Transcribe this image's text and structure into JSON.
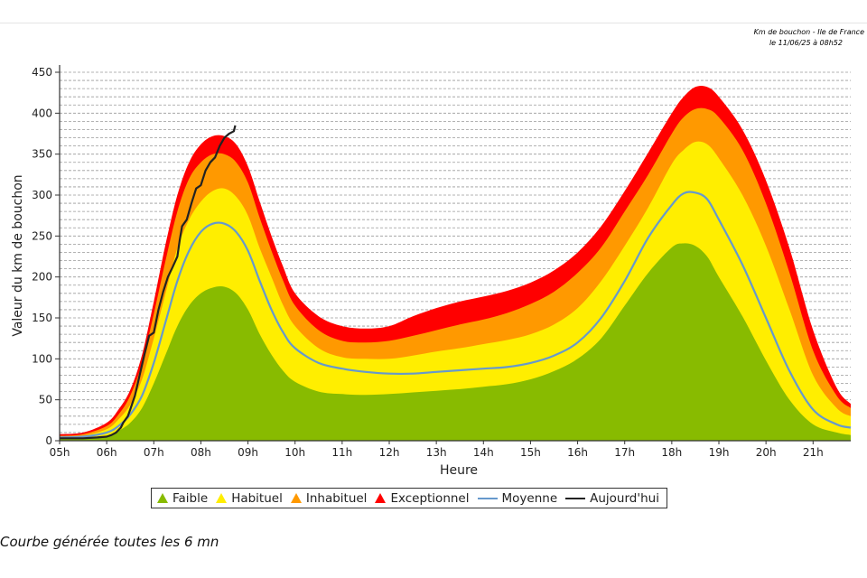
{
  "header": {
    "line1": "Km de bouchon - Ile de France",
    "line2": "le 11/06/25 à 08h52"
  },
  "footer": {
    "note": "Courbe générée toutes les 6 mn"
  },
  "chart_data": {
    "type": "area",
    "xlabel": "Heure",
    "ylabel": "Valeur du  km de bouchon",
    "x_ticks": [
      "05h",
      "06h",
      "07h",
      "08h",
      "09h",
      "10h",
      "11h",
      "12h",
      "13h",
      "14h",
      "15h",
      "16h",
      "17h",
      "18h",
      "19h",
      "20h",
      "21h"
    ],
    "x_tick_hours": [
      5,
      6,
      7,
      8,
      9,
      10,
      11,
      12,
      13,
      14,
      15,
      16,
      17,
      18,
      19,
      20,
      21
    ],
    "xlim": [
      5,
      21.8
    ],
    "ylim": [
      0,
      450
    ],
    "y_ticks": [
      0,
      50,
      100,
      150,
      200,
      250,
      300,
      350,
      400,
      450
    ],
    "grid": "horizontal dashed, every 10",
    "legend_position": "bottom",
    "x": [
      5,
      5.5,
      6,
      6.25,
      6.5,
      6.75,
      7,
      7.25,
      7.5,
      7.75,
      8,
      8.25,
      8.5,
      8.75,
      9,
      9.25,
      9.5,
      9.75,
      10,
      10.5,
      11,
      11.5,
      12,
      12.5,
      13,
      13.5,
      14,
      14.5,
      15,
      15.5,
      16,
      16.5,
      17,
      17.5,
      18,
      18.25,
      18.5,
      18.75,
      19,
      19.5,
      20,
      20.5,
      21,
      21.5,
      21.8
    ],
    "series": [
      {
        "name": "Exceptionnel",
        "color": "#ff0000",
        "kind": "band",
        "values": [
          8,
          10,
          22,
          38,
          62,
          105,
          170,
          240,
          300,
          340,
          362,
          372,
          372,
          362,
          335,
          292,
          250,
          212,
          180,
          152,
          140,
          137,
          140,
          152,
          162,
          170,
          176,
          183,
          193,
          208,
          230,
          262,
          305,
          352,
          400,
          420,
          432,
          432,
          420,
          380,
          318,
          235,
          135,
          65,
          45
        ]
      },
      {
        "name": "Inhabituel",
        "color": "#ff9900",
        "kind": "band",
        "values": [
          6,
          8,
          18,
          32,
          55,
          95,
          155,
          220,
          280,
          320,
          340,
          350,
          350,
          340,
          315,
          272,
          232,
          195,
          165,
          135,
          122,
          120,
          122,
          128,
          135,
          142,
          148,
          156,
          167,
          182,
          205,
          236,
          280,
          325,
          375,
          395,
          405,
          405,
          395,
          355,
          290,
          205,
          110,
          55,
          40
        ]
      },
      {
        "name": "Habituel",
        "color": "#ffee00",
        "kind": "band",
        "values": [
          4,
          6,
          14,
          26,
          44,
          75,
          125,
          180,
          235,
          270,
          292,
          305,
          308,
          298,
          275,
          235,
          200,
          165,
          140,
          113,
          102,
          100,
          100,
          104,
          109,
          113,
          118,
          123,
          130,
          142,
          162,
          195,
          238,
          285,
          338,
          355,
          365,
          362,
          345,
          300,
          238,
          160,
          80,
          40,
          30
        ]
      },
      {
        "name": "Faible",
        "color": "#88bb00",
        "kind": "band",
        "values": [
          2,
          3,
          6,
          12,
          22,
          40,
          70,
          105,
          140,
          165,
          180,
          187,
          188,
          180,
          160,
          130,
          105,
          85,
          72,
          60,
          57,
          56,
          57,
          59,
          61,
          63,
          66,
          69,
          75,
          85,
          100,
          125,
          165,
          205,
          236,
          241,
          238,
          225,
          200,
          152,
          98,
          50,
          20,
          10,
          7
        ]
      },
      {
        "name": "Moyenne",
        "color": "#6699cc",
        "kind": "line",
        "values": [
          4,
          5,
          10,
          18,
          32,
          55,
          95,
          145,
          195,
          232,
          255,
          265,
          265,
          255,
          232,
          195,
          160,
          132,
          113,
          95,
          88,
          84,
          82,
          82,
          84,
          86,
          88,
          90,
          95,
          104,
          120,
          150,
          195,
          248,
          288,
          302,
          303,
          295,
          270,
          215,
          150,
          85,
          38,
          20,
          16
        ]
      },
      {
        "name": "Aujourd'hui",
        "color": "#222222",
        "kind": "line",
        "x": [
          5,
          5.5,
          5.8,
          6.0,
          6.1,
          6.2,
          6.3,
          6.35,
          6.45,
          6.5,
          6.6,
          6.7,
          6.8,
          6.9,
          7.0,
          7.1,
          7.2,
          7.3,
          7.4,
          7.5,
          7.55,
          7.6,
          7.7,
          7.8,
          7.9,
          8.0,
          8.1,
          8.2,
          8.3,
          8.4,
          8.5,
          8.6,
          8.7,
          8.73
        ],
        "values": [
          3,
          3,
          4,
          5,
          7,
          10,
          16,
          22,
          30,
          38,
          55,
          80,
          105,
          128,
          132,
          160,
          182,
          200,
          212,
          225,
          245,
          262,
          270,
          290,
          308,
          312,
          330,
          340,
          346,
          360,
          370,
          375,
          378,
          385
        ]
      }
    ]
  }
}
